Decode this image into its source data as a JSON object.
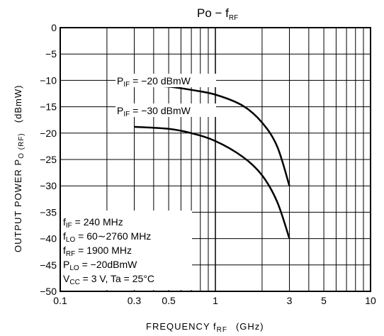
{
  "chart_data": {
    "type": "line",
    "title": "Po − f",
    "title_sub": "RF",
    "xlabel": "FREQUENCY  f",
    "xlabel_sub": "RF",
    "xlabel_unit": "(GHz)",
    "ylabel": "OUTPUT POWER  P",
    "ylabel_sub": "O (RF)",
    "ylabel_unit": "(dBmW)",
    "x_scale": "log",
    "xlim": [
      0.1,
      10
    ],
    "ylim": [
      -50,
      0
    ],
    "grid": true,
    "x_ticks": [
      0.1,
      0.3,
      0.5,
      1,
      3,
      5,
      10
    ],
    "x_tick_labels": [
      "0.1",
      "0.3",
      "0.5",
      "1",
      "3",
      "5",
      "10"
    ],
    "x_minor_grid": [
      0.2,
      0.3,
      0.4,
      0.5,
      0.6,
      0.7,
      0.8,
      0.9,
      2,
      3,
      4,
      5,
      6,
      7,
      8,
      9
    ],
    "y_ticks": [
      0,
      -5,
      -10,
      -15,
      -20,
      -25,
      -30,
      -35,
      -40,
      -45,
      -50
    ],
    "y_tick_labels": [
      "0",
      "−5",
      "−10",
      "−15",
      "−20",
      "−25",
      "−30",
      "−35",
      "−40",
      "−45",
      "−50"
    ],
    "series": [
      {
        "label_main": "P",
        "label_sub": "IF",
        "label_rest": " = −20 dBmW",
        "x": [
          0.3,
          0.5,
          0.7,
          1.0,
          1.5,
          2.0,
          2.5,
          3.0
        ],
        "y": [
          -10.8,
          -11.2,
          -11.8,
          -12.7,
          -14.8,
          -18.0,
          -22.5,
          -30.0
        ]
      },
      {
        "label_main": "P",
        "label_sub": "IF",
        "label_rest": " = −30 dBmW",
        "x": [
          0.3,
          0.5,
          0.7,
          1.0,
          1.5,
          2.0,
          2.5,
          3.0
        ],
        "y": [
          -18.8,
          -19.2,
          -20.0,
          -21.5,
          -24.5,
          -28.0,
          -33.0,
          -40.0
        ]
      }
    ],
    "annotations": [
      {
        "main": "f",
        "sub": "IF",
        "rest": " = 240 MHz"
      },
      {
        "main": "f",
        "sub": "LO",
        "rest": " = 60∼2760 MHz"
      },
      {
        "main": "f",
        "sub": "RF",
        "rest": " = 1900 MHz"
      },
      {
        "main": "P",
        "sub": "LO",
        "rest": " = −20dBmW"
      },
      {
        "main": "V",
        "sub": "CC",
        "rest": " = 3 V,  Ta = 25°C"
      }
    ]
  }
}
